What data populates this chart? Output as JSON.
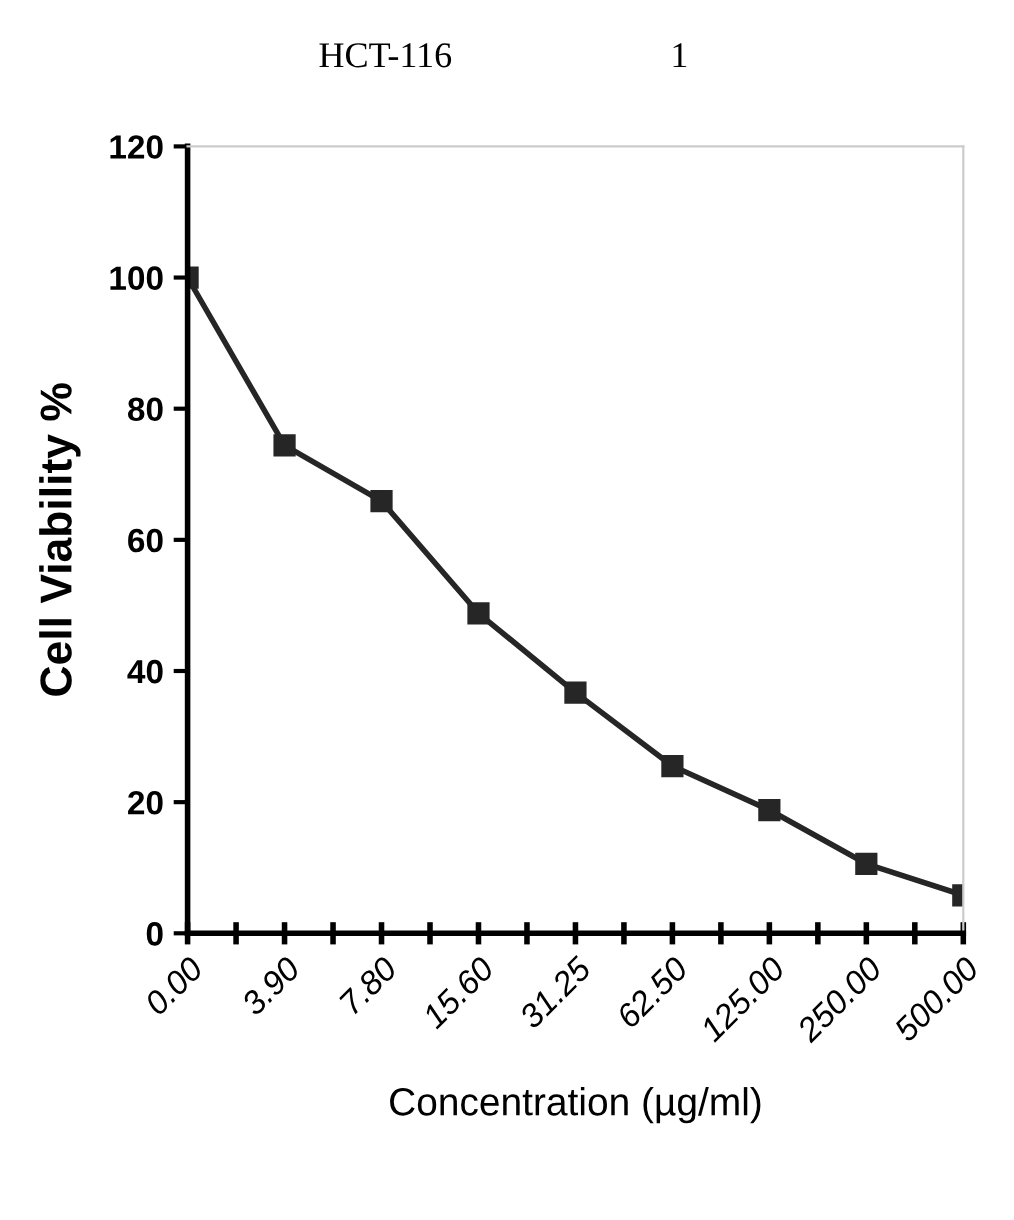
{
  "chart_data": {
    "type": "line",
    "title": "HCT-116",
    "subtitle": "1",
    "xlabel": "Concentration (µg/ml)",
    "ylabel": "Cell Viability %",
    "categories": [
      "0.00",
      "3.90",
      "7.80",
      "15.60",
      "31.25",
      "62.50",
      "125.00",
      "250.00",
      "500.00"
    ],
    "series": [
      {
        "color": "#262626",
        "values": [
          100,
          74.4,
          65.9,
          48.8,
          36.7,
          25.5,
          18.8,
          10.6,
          5.8
        ]
      }
    ],
    "ylim": [
      0,
      120
    ],
    "yticks": [
      0,
      20,
      40,
      60,
      80,
      100,
      120
    ],
    "marker": "square",
    "line_style": "solid",
    "grid": false,
    "legend": false
  }
}
